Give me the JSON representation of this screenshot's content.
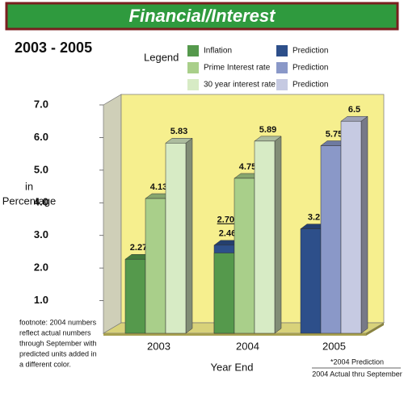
{
  "chart_data": {
    "type": "bar3d",
    "title": "Financial/Interest",
    "subtitle": "2003 - 2005",
    "legend_title": "Legend",
    "ylabel": [
      "in",
      "Percentage"
    ],
    "xlabel": "Year End",
    "categories": [
      "2003",
      "2004",
      "2005"
    ],
    "series": [
      {
        "name": "Inflation",
        "color": "#55994c",
        "values": [
          2.27,
          2.46,
          null
        ]
      },
      {
        "name": "Prime Interest rate",
        "color": "#a9cf8a",
        "values": [
          4.13,
          4.75,
          null
        ]
      },
      {
        "name": "30 year interest rate",
        "color": "#d7ebc5",
        "values": [
          5.83,
          5.89,
          null
        ]
      },
      {
        "name": "Prediction",
        "color": "#2d4f8a",
        "values": [
          null,
          2.7,
          3.2
        ],
        "value_labels": [
          null,
          "2.70*",
          "3.2"
        ]
      },
      {
        "name": "Prediction",
        "color": "#8a98c8",
        "values": [
          null,
          null,
          5.75
        ]
      },
      {
        "name": "Prediction",
        "color": "#c6cae2",
        "values": [
          null,
          null,
          6.5
        ]
      }
    ],
    "ylim": [
      0,
      7.0
    ],
    "yticks": [
      {
        "value": 1,
        "label": "1.0"
      },
      {
        "value": 2,
        "label": "2.0"
      },
      {
        "value": 3,
        "label": "3.0"
      },
      {
        "value": 4,
        "label": "4.0"
      },
      {
        "value": 5,
        "label": "5.0"
      },
      {
        "value": 6,
        "label": "6.0"
      },
      {
        "value": 7,
        "label": "7.0"
      }
    ],
    "footnote": [
      "footnote: 2004 numbers",
      "reflect actual numbers",
      "through September with",
      "predicted units added in",
      "a different color."
    ],
    "note": [
      "*2004 Prediction",
      "2004 Actual thru September"
    ]
  }
}
